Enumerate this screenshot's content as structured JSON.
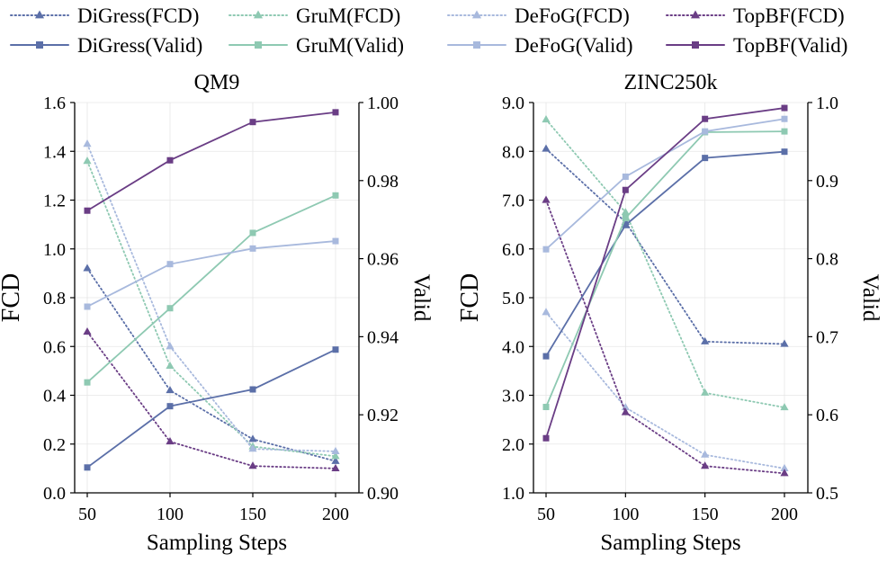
{
  "chart_data": {
    "type": "line",
    "x": [
      50,
      100,
      150,
      200
    ],
    "xticks": [
      "50",
      "100",
      "150",
      "200"
    ],
    "legend": {
      "placement": "top",
      "entries": [
        {
          "label": "DiGress(FCD)",
          "color": "#5B6FA8",
          "style": "dotted",
          "marker": "triangle"
        },
        {
          "label": "GruM(FCD)",
          "color": "#8EC9B2",
          "style": "dotted",
          "marker": "triangle"
        },
        {
          "label": "DeFoG(FCD)",
          "color": "#A8B9DD",
          "style": "dotted",
          "marker": "triangle"
        },
        {
          "label": "TopBF(FCD)",
          "color": "#6A3D85",
          "style": "dotted",
          "marker": "triangle"
        },
        {
          "label": "DiGress(Valid)",
          "color": "#5B6FA8",
          "style": "solid",
          "marker": "square"
        },
        {
          "label": "GruM(Valid)",
          "color": "#8EC9B2",
          "style": "solid",
          "marker": "square"
        },
        {
          "label": "DeFoG(Valid)",
          "color": "#A8B9DD",
          "style": "solid",
          "marker": "square"
        },
        {
          "label": "TopBF(Valid)",
          "color": "#6A3D85",
          "style": "solid",
          "marker": "square"
        }
      ]
    },
    "panels": [
      {
        "title": "QM9",
        "xlabel": "Sampling Steps",
        "ylabel_left": "FCD",
        "ylabel_right": "Valid",
        "ylim_left": [
          0.0,
          1.6
        ],
        "ylim_right": [
          0.9,
          1.0
        ],
        "yticks_left": [
          "0.0",
          "0.2",
          "0.4",
          "0.6",
          "0.8",
          "1.0",
          "1.2",
          "1.4",
          "1.6"
        ],
        "yticks_left_values": [
          0.0,
          0.2,
          0.4,
          0.6,
          0.8,
          1.0,
          1.2,
          1.4,
          1.6
        ],
        "yticks_right": [
          "0.90",
          "0.92",
          "0.94",
          "0.96",
          "0.98",
          "1.00"
        ],
        "yticks_right_values": [
          0.9,
          0.92,
          0.94,
          0.96,
          0.98,
          1.0
        ],
        "series_fcd": [
          {
            "name": "DiGress(FCD)",
            "values": [
              0.92,
              0.42,
              0.22,
              0.13
            ]
          },
          {
            "name": "GruM(FCD)",
            "values": [
              1.36,
              0.52,
              0.19,
              0.15
            ]
          },
          {
            "name": "DeFoG(FCD)",
            "values": [
              1.43,
              0.6,
              0.18,
              0.17
            ]
          },
          {
            "name": "TopBF(FCD)",
            "values": [
              0.66,
              0.21,
              0.11,
              0.1
            ]
          }
        ],
        "series_valid": [
          {
            "name": "DiGress(Valid)",
            "values": [
              0.9065,
              0.9222,
              0.9265,
              0.9367
            ]
          },
          {
            "name": "GruM(Valid)",
            "values": [
              0.9283,
              0.9473,
              0.9666,
              0.9762
            ]
          },
          {
            "name": "DeFoG(Valid)",
            "values": [
              0.9477,
              0.9586,
              0.9626,
              0.9645
            ]
          },
          {
            "name": "TopBF(Valid)",
            "values": [
              0.9723,
              0.9852,
              0.995,
              0.9975
            ]
          }
        ]
      },
      {
        "title": "ZINC250k",
        "xlabel": "Sampling Steps",
        "ylabel_left": "FCD",
        "ylabel_right": "Valid",
        "ylim_left": [
          1.0,
          9.0
        ],
        "ylim_right": [
          0.5,
          1.0
        ],
        "yticks_left": [
          "1.0",
          "2.0",
          "3.0",
          "4.0",
          "5.0",
          "6.0",
          "7.0",
          "8.0",
          "9.0"
        ],
        "yticks_left_values": [
          1,
          2,
          3,
          4,
          5,
          6,
          7,
          8,
          9
        ],
        "yticks_right": [
          "0.5",
          "0.6",
          "0.7",
          "0.8",
          "0.9",
          "1.0"
        ],
        "yticks_right_values": [
          0.5,
          0.6,
          0.7,
          0.8,
          0.9,
          1.0
        ],
        "series_fcd": [
          {
            "name": "DiGress(FCD)",
            "values": [
              8.05,
              6.55,
              4.1,
              4.05
            ]
          },
          {
            "name": "GruM(FCD)",
            "values": [
              8.65,
              6.75,
              3.05,
              2.75
            ]
          },
          {
            "name": "DeFoG(FCD)",
            "values": [
              4.7,
              2.75,
              1.78,
              1.5
            ]
          },
          {
            "name": "TopBF(FCD)",
            "values": [
              7.0,
              2.65,
              1.55,
              1.4
            ]
          }
        ],
        "series_valid": [
          {
            "name": "DiGress(Valid)",
            "values": [
              0.675,
              0.843,
              0.929,
              0.937
            ]
          },
          {
            "name": "GruM(Valid)",
            "values": [
              0.61,
              0.852,
              0.962,
              0.963
            ]
          },
          {
            "name": "DeFoG(Valid)",
            "values": [
              0.812,
              0.905,
              0.963,
              0.979
            ]
          },
          {
            "name": "TopBF(Valid)",
            "values": [
              0.57,
              0.888,
              0.979,
              0.993
            ]
          }
        ]
      }
    ]
  }
}
